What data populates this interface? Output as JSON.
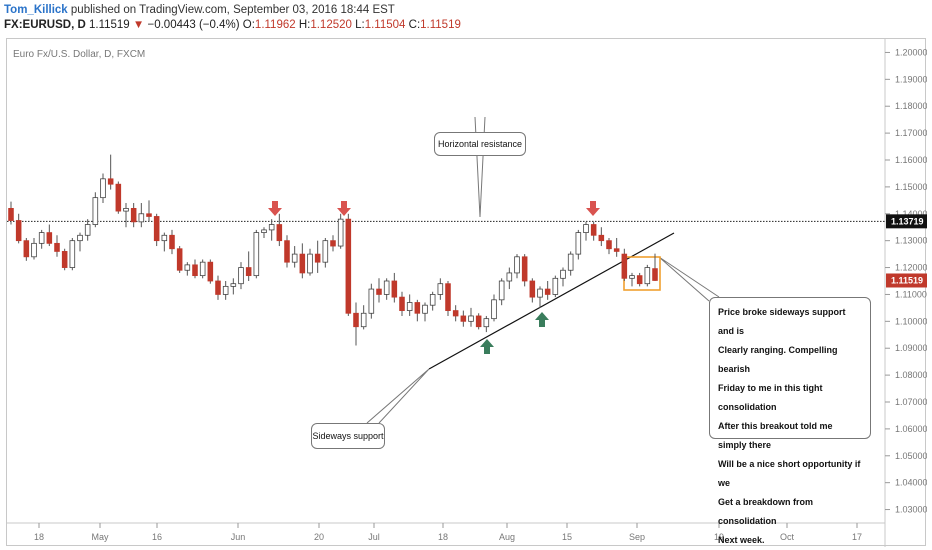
{
  "header": {
    "author": "Tom_Killick",
    "published": "published on TradingView.com, September 03, 2016 18:44 EST",
    "symbol": "FX:EURUSD, D",
    "last": "1.11519",
    "change": "−0.00443 (−0.4%)",
    "open_label": "O:",
    "open": "1.11962",
    "high_label": "H:",
    "high": "1.12520",
    "low_label": "L:",
    "low": "1.11504",
    "close_label": "C:",
    "close": "1.11519"
  },
  "chart_data": {
    "type": "candlestick",
    "title": "Euro Fx/U.S. Dollar, D, FXCM",
    "ylim": [
      1.025,
      1.205
    ],
    "y_ticks": [
      "1.20000",
      "1.19000",
      "1.18000",
      "1.17000",
      "1.16000",
      "1.15000",
      "1.14000",
      "1.13000",
      "1.12000",
      "1.11000",
      "1.10000",
      "1.09000",
      "1.08000",
      "1.07000",
      "1.06000",
      "1.05000",
      "1.04000",
      "1.03000"
    ],
    "x_ticks": [
      "18",
      "May",
      "16",
      "Jun",
      "20",
      "Jul",
      "18",
      "Aug",
      "15",
      "Sep",
      "19",
      "Oct",
      "17"
    ],
    "price_labels": {
      "resistance": {
        "value": 1.13719,
        "text": "1.13719",
        "color": "#111111"
      },
      "last": {
        "value": 1.11519,
        "text": "1.11519",
        "color": "#c0392b"
      }
    },
    "colors": {
      "up": "#ffffff",
      "down": "#c0392b",
      "wick": "#555555"
    },
    "candles": [
      [
        1.142,
        1.1445,
        1.136,
        1.1375
      ],
      [
        1.1375,
        1.14,
        1.129,
        1.13
      ],
      [
        1.13,
        1.131,
        1.1225,
        1.124
      ],
      [
        1.124,
        1.131,
        1.123,
        1.129
      ],
      [
        1.129,
        1.134,
        1.127,
        1.133
      ],
      [
        1.133,
        1.136,
        1.128,
        1.129
      ],
      [
        1.129,
        1.132,
        1.124,
        1.126
      ],
      [
        1.126,
        1.127,
        1.119,
        1.12
      ],
      [
        1.12,
        1.131,
        1.119,
        1.13
      ],
      [
        1.13,
        1.133,
        1.126,
        1.132
      ],
      [
        1.132,
        1.138,
        1.13,
        1.136
      ],
      [
        1.136,
        1.148,
        1.135,
        1.146
      ],
      [
        1.146,
        1.155,
        1.144,
        1.153
      ],
      [
        1.153,
        1.162,
        1.149,
        1.151
      ],
      [
        1.151,
        1.152,
        1.14,
        1.141
      ],
      [
        1.141,
        1.144,
        1.135,
        1.142
      ],
      [
        1.142,
        1.144,
        1.135,
        1.137
      ],
      [
        1.137,
        1.144,
        1.135,
        1.14
      ],
      [
        1.14,
        1.145,
        1.137,
        1.139
      ],
      [
        1.139,
        1.14,
        1.128,
        1.13
      ],
      [
        1.13,
        1.133,
        1.126,
        1.132
      ],
      [
        1.132,
        1.134,
        1.125,
        1.127
      ],
      [
        1.127,
        1.128,
        1.118,
        1.119
      ],
      [
        1.119,
        1.122,
        1.117,
        1.121
      ],
      [
        1.121,
        1.123,
        1.116,
        1.117
      ],
      [
        1.117,
        1.123,
        1.116,
        1.122
      ],
      [
        1.122,
        1.123,
        1.114,
        1.115
      ],
      [
        1.115,
        1.117,
        1.108,
        1.11
      ],
      [
        1.11,
        1.115,
        1.108,
        1.113
      ],
      [
        1.113,
        1.116,
        1.11,
        1.114
      ],
      [
        1.114,
        1.122,
        1.112,
        1.12
      ],
      [
        1.12,
        1.126,
        1.115,
        1.117
      ],
      [
        1.117,
        1.134,
        1.116,
        1.133
      ],
      [
        1.133,
        1.135,
        1.131,
        1.134
      ],
      [
        1.134,
        1.138,
        1.13,
        1.136
      ],
      [
        1.136,
        1.14,
        1.128,
        1.13
      ],
      [
        1.13,
        1.132,
        1.12,
        1.122
      ],
      [
        1.122,
        1.128,
        1.12,
        1.125
      ],
      [
        1.125,
        1.129,
        1.116,
        1.118
      ],
      [
        1.118,
        1.127,
        1.117,
        1.125
      ],
      [
        1.125,
        1.13,
        1.118,
        1.122
      ],
      [
        1.122,
        1.131,
        1.12,
        1.13
      ],
      [
        1.13,
        1.132,
        1.126,
        1.128
      ],
      [
        1.128,
        1.14,
        1.127,
        1.138
      ],
      [
        1.138,
        1.14,
        1.102,
        1.103
      ],
      [
        1.103,
        1.107,
        1.091,
        1.098
      ],
      [
        1.098,
        1.106,
        1.097,
        1.103
      ],
      [
        1.103,
        1.114,
        1.101,
        1.112
      ],
      [
        1.112,
        1.116,
        1.107,
        1.11
      ],
      [
        1.11,
        1.116,
        1.108,
        1.115
      ],
      [
        1.115,
        1.118,
        1.107,
        1.109
      ],
      [
        1.109,
        1.111,
        1.102,
        1.104
      ],
      [
        1.104,
        1.11,
        1.102,
        1.107
      ],
      [
        1.107,
        1.108,
        1.1,
        1.103
      ],
      [
        1.103,
        1.107,
        1.1,
        1.106
      ],
      [
        1.106,
        1.111,
        1.104,
        1.11
      ],
      [
        1.11,
        1.116,
        1.108,
        1.114
      ],
      [
        1.114,
        1.115,
        1.102,
        1.104
      ],
      [
        1.104,
        1.106,
        1.1,
        1.102
      ],
      [
        1.102,
        1.104,
        1.098,
        1.1
      ],
      [
        1.1,
        1.105,
        1.098,
        1.102
      ],
      [
        1.102,
        1.103,
        1.097,
        1.098
      ],
      [
        1.098,
        1.102,
        1.096,
        1.101
      ],
      [
        1.101,
        1.11,
        1.1,
        1.108
      ],
      [
        1.108,
        1.116,
        1.106,
        1.115
      ],
      [
        1.115,
        1.12,
        1.112,
        1.118
      ],
      [
        1.118,
        1.125,
        1.116,
        1.124
      ],
      [
        1.124,
        1.125,
        1.113,
        1.115
      ],
      [
        1.115,
        1.116,
        1.107,
        1.109
      ],
      [
        1.109,
        1.113,
        1.105,
        1.112
      ],
      [
        1.112,
        1.115,
        1.108,
        1.11
      ],
      [
        1.11,
        1.117,
        1.109,
        1.116
      ],
      [
        1.116,
        1.12,
        1.113,
        1.119
      ],
      [
        1.119,
        1.126,
        1.117,
        1.125
      ],
      [
        1.125,
        1.134,
        1.123,
        1.133
      ],
      [
        1.133,
        1.137,
        1.13,
        1.136
      ],
      [
        1.136,
        1.137,
        1.13,
        1.132
      ],
      [
        1.132,
        1.135,
        1.128,
        1.13
      ],
      [
        1.13,
        1.131,
        1.125,
        1.127
      ],
      [
        1.127,
        1.131,
        1.124,
        1.126
      ],
      [
        1.125,
        1.127,
        1.115,
        1.116
      ],
      [
        1.116,
        1.118,
        1.113,
        1.117
      ],
      [
        1.117,
        1.118,
        1.113,
        1.114
      ],
      [
        1.114,
        1.121,
        1.113,
        1.12
      ],
      [
        1.1196,
        1.1252,
        1.115,
        1.1152
      ]
    ],
    "annotations": [
      {
        "text": "Horizontal resistance"
      },
      {
        "text": "Sideways support"
      },
      {
        "lines": [
          "Price broke sideways support and is",
          "Clearly ranging. Compelling bearish",
          "Friday to me in this tight consolidation",
          "After this breakout told me simply there",
          "Will be a nice short opportunity if we",
          "Get a breakdown from consolidation",
          "Next week."
        ]
      }
    ],
    "markers": [
      {
        "type": "arrow-down",
        "color": "#d9534f"
      },
      {
        "type": "arrow-down",
        "color": "#d9534f"
      },
      {
        "type": "arrow-down",
        "color": "#d9534f"
      },
      {
        "type": "arrow-up",
        "color": "#3a7d5c"
      },
      {
        "type": "arrow-up",
        "color": "#3a7d5c"
      }
    ],
    "highlight_box_color": "#f0a030"
  }
}
